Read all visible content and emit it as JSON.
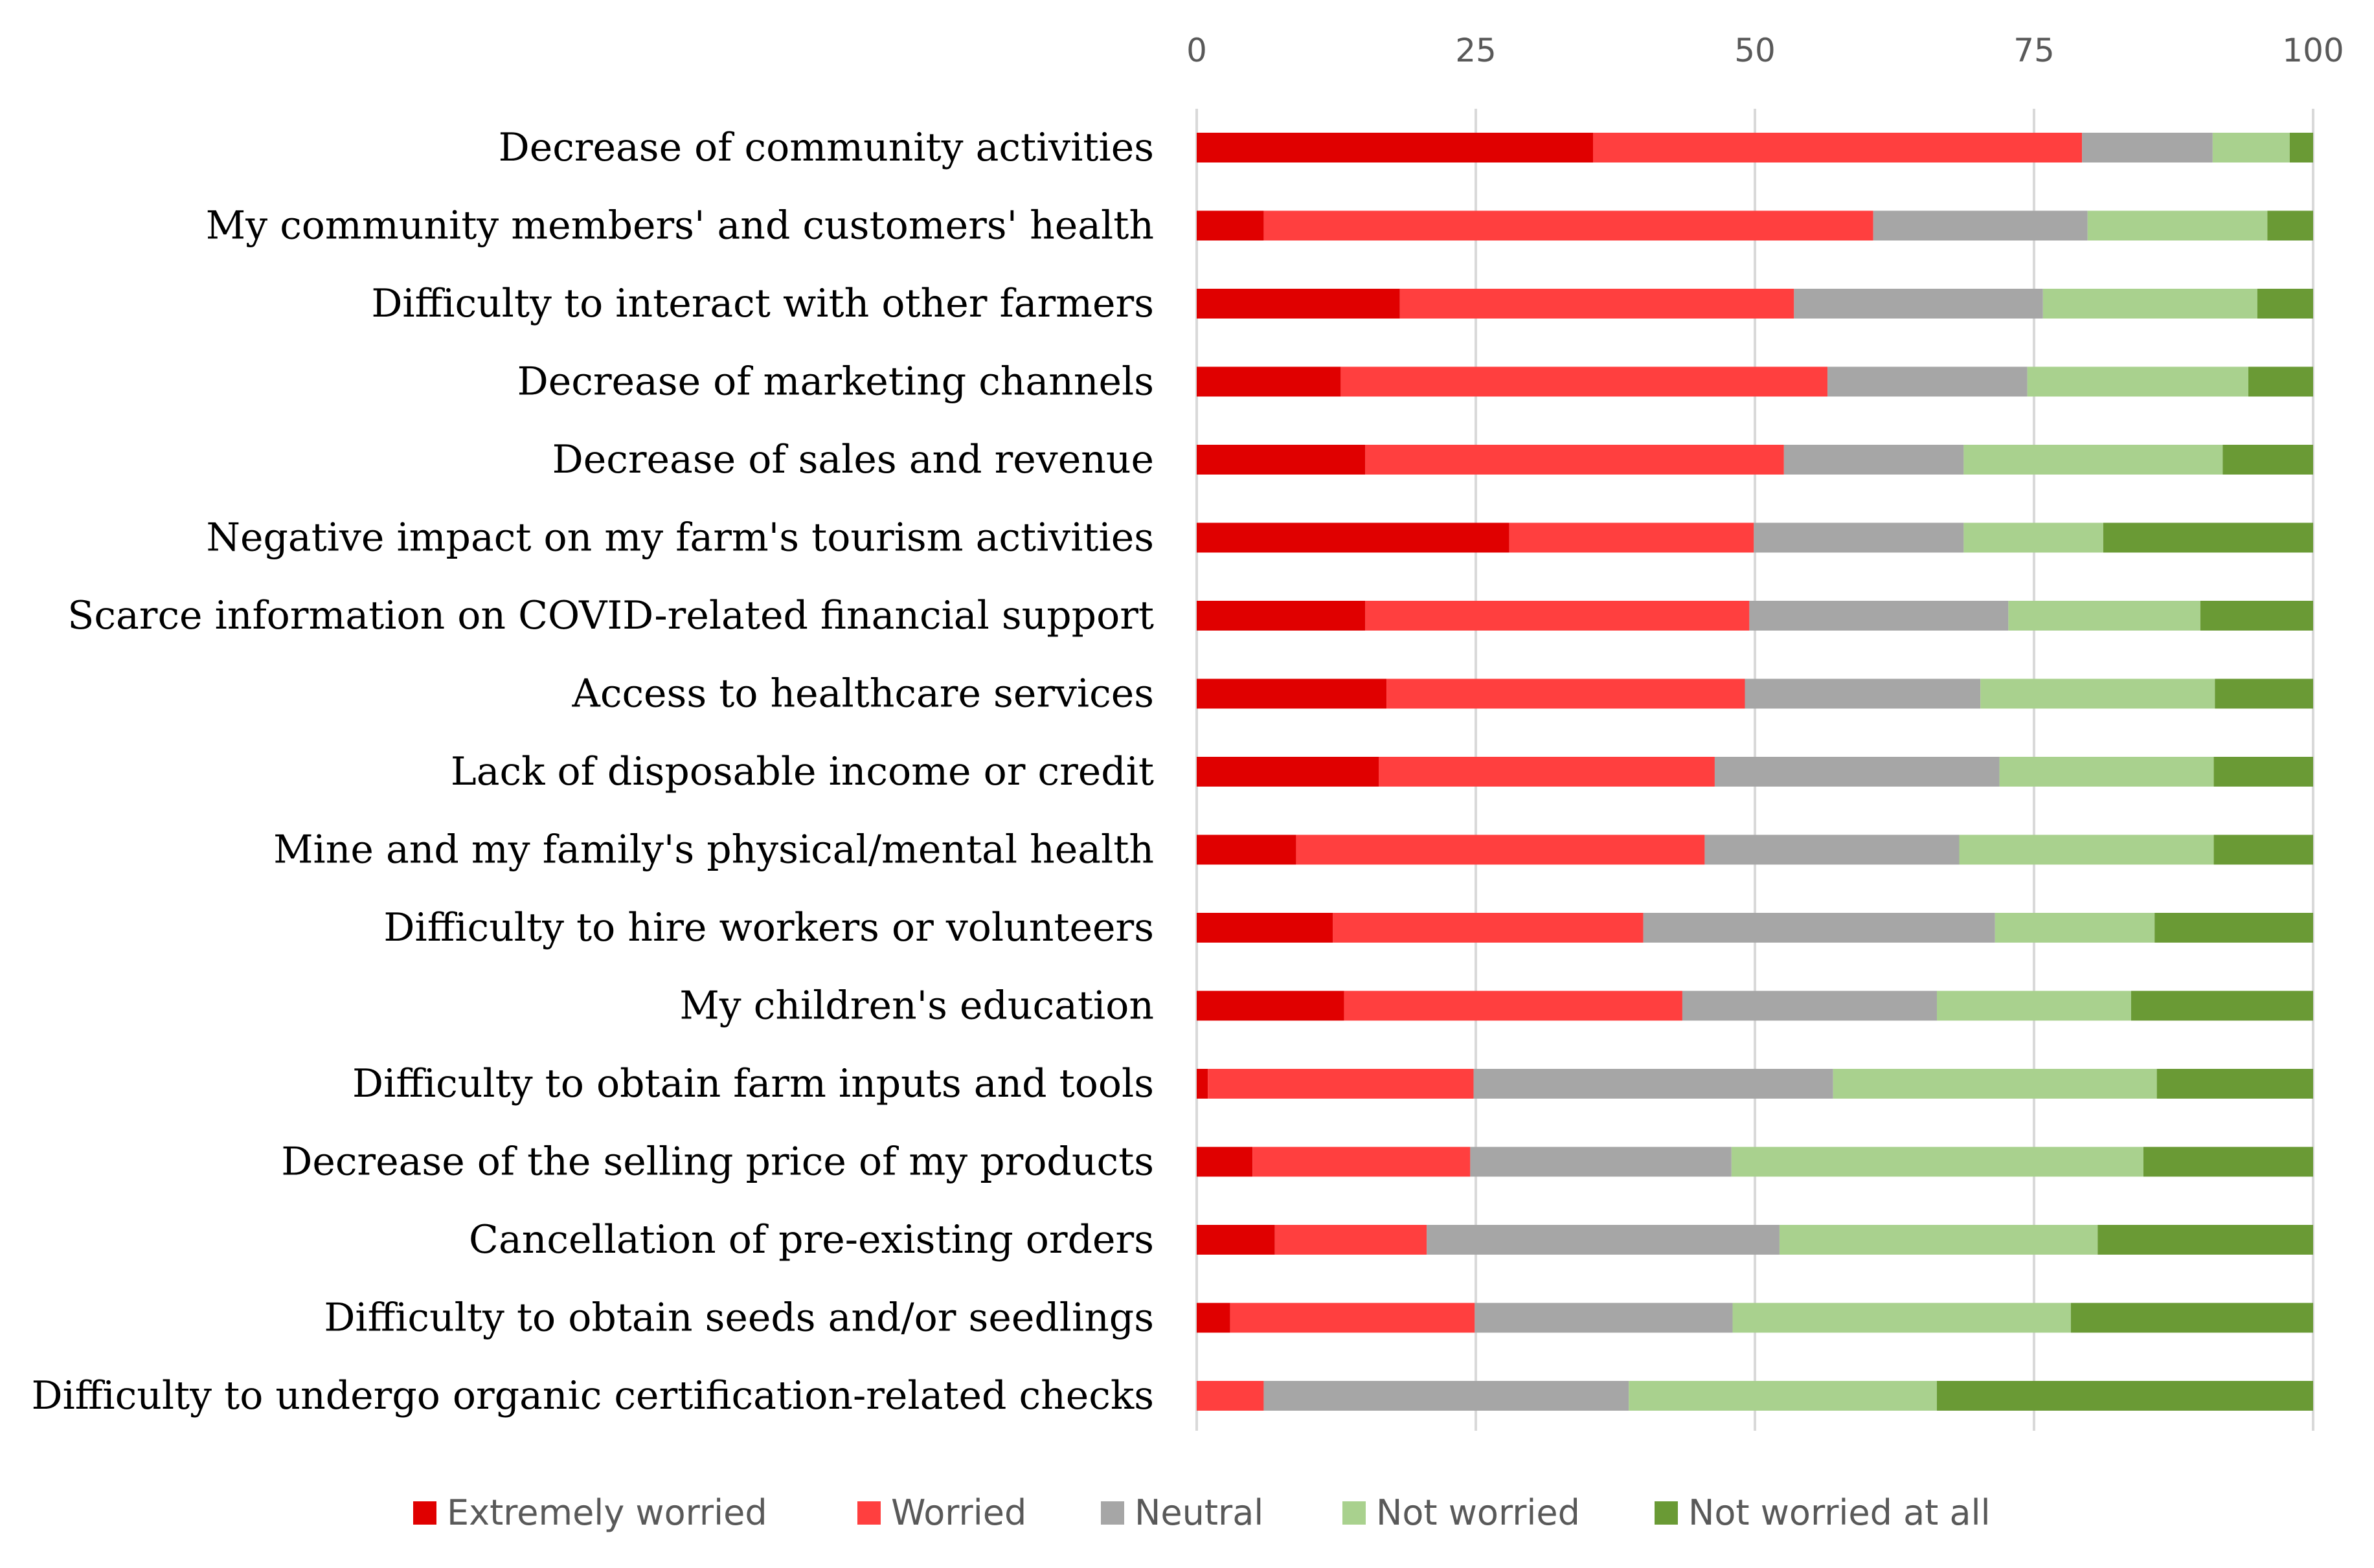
{
  "chart_data": {
    "type": "bar",
    "orientation": "horizontal",
    "stacked": true,
    "title": "",
    "xlabel": "",
    "ylabel": "",
    "xlim": [
      0,
      100
    ],
    "x_ticks": [
      "0",
      "25",
      "50",
      "75",
      "100"
    ],
    "x_tick_values": [
      0,
      25,
      50,
      75,
      100
    ],
    "grid": true,
    "legend_position": "bottom",
    "categories": [
      "Decrease of community activities",
      "My community members' and customers' health",
      "Difficulty to interact with other farmers",
      "Decrease of marketing channels",
      "Decrease of sales and revenue",
      "Negative impact on my farm's tourism activities",
      "Scarce information on COVID-related financial support",
      "Access to healthcare services",
      "Lack of disposable income or credit",
      "Mine and my family's physical/mental health",
      "Difficulty to hire workers or volunteers",
      "My children's education",
      "Difficulty to obtain farm inputs and tools",
      "Decrease of the selling price of my products",
      "Cancellation of pre-existing orders",
      "Difficulty to obtain seeds and/or seedlings",
      "Difficulty to undergo organic certification-related checks"
    ],
    "series": [
      {
        "name": "Extremely worried",
        "color": "#E00000",
        "values": [
          35.5,
          6,
          18.2,
          12.9,
          15.1,
          28,
          15.1,
          17,
          16.3,
          8.9,
          12.2,
          13.2,
          1,
          5,
          7,
          3,
          0
        ]
      },
      {
        "name": "Worried",
        "color": "#FF3F3F",
        "values": [
          43.8,
          54.6,
          35.3,
          43.6,
          37.5,
          21.9,
          34.4,
          32.1,
          30.1,
          36.6,
          27.8,
          30.3,
          23.8,
          19.5,
          13.6,
          21.9,
          6
        ]
      },
      {
        "name": "Neutral",
        "color": "#A6A6A6",
        "values": [
          11.7,
          19.2,
          22.3,
          17.9,
          16.1,
          18.8,
          23.2,
          21.1,
          25.5,
          22.8,
          31.5,
          22.8,
          32.2,
          23.4,
          31.6,
          23.1,
          32.7
        ]
      },
      {
        "name": "Not worried",
        "color": "#A9D18E",
        "values": [
          6.9,
          16.1,
          19.2,
          19.8,
          23.2,
          12.5,
          17.2,
          21,
          19.2,
          22.8,
          14.3,
          17.4,
          29,
          36.9,
          28.5,
          30.3,
          27.6
        ]
      },
      {
        "name": "Not worried at all",
        "color": "#6A9A35",
        "values": [
          2.1,
          4.1,
          5,
          5.8,
          8.1,
          18.8,
          10.1,
          8.8,
          8.9,
          8.9,
          14.2,
          16.3,
          14,
          15.2,
          19.3,
          21.7,
          33.7
        ]
      }
    ]
  }
}
